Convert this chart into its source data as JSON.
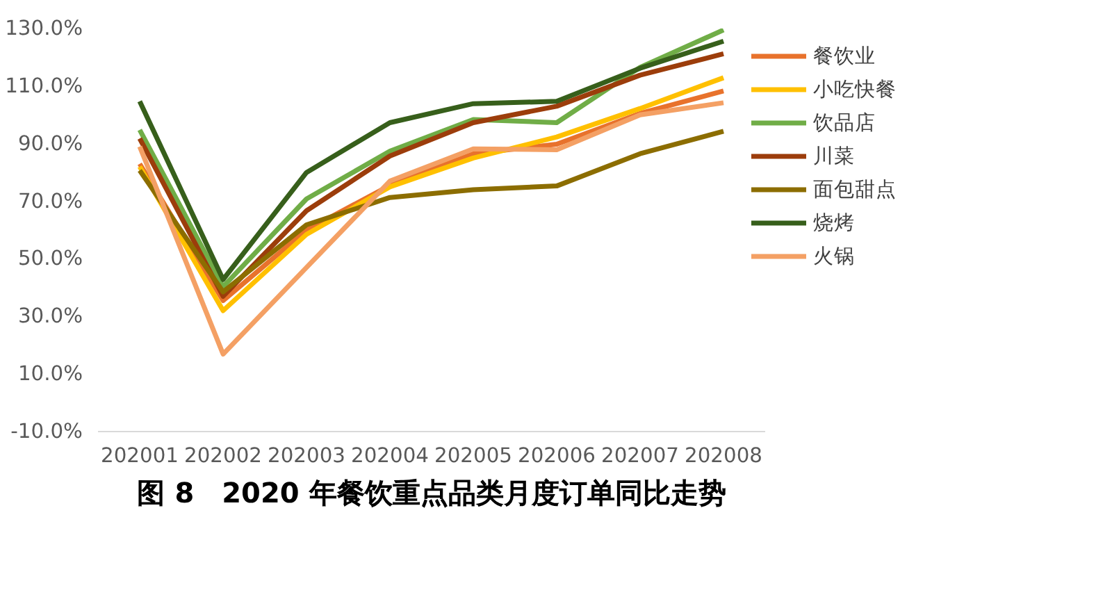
{
  "chart_data": {
    "type": "line",
    "title": "图 8　2020 年餐饮重点品类月度订单同比走势",
    "categories": [
      "202001",
      "202002",
      "202003",
      "202004",
      "202005",
      "202006",
      "202007",
      "202008"
    ],
    "ylim": [
      -10,
      130
    ],
    "yticks": [
      {
        "value": -10,
        "label": "-10.0%"
      },
      {
        "value": 10,
        "label": "10.0%"
      },
      {
        "value": 30,
        "label": "30.0%"
      },
      {
        "value": 50,
        "label": "50.0%"
      },
      {
        "value": 70,
        "label": "70.0%"
      },
      {
        "value": 90,
        "label": "90.0%"
      },
      {
        "value": 110,
        "label": "110.0%"
      },
      {
        "value": 130,
        "label": "130.0%"
      }
    ],
    "grid": false,
    "legend": "right",
    "marker": "none",
    "line_style": "solid",
    "series": [
      {
        "name": "餐饮业",
        "color": "#e8722c",
        "values": [
          83,
          35.5,
          60,
          75.5,
          86.5,
          89.8,
          100.5,
          108.3
        ]
      },
      {
        "name": "小吃快餐",
        "color": "#ffc000",
        "values": [
          82,
          32,
          58.5,
          75,
          85,
          92.3,
          102.2,
          112.9
        ]
      },
      {
        "name": "饮品店",
        "color": "#70ad47",
        "values": [
          94.8,
          40.3,
          70.8,
          87.4,
          98.4,
          97.3,
          116.5,
          129.5
        ]
      },
      {
        "name": "川菜",
        "color": "#9c3d0b",
        "values": [
          91.8,
          37,
          66.7,
          85.7,
          97.3,
          103,
          113.8,
          121.2
        ]
      },
      {
        "name": "面包甜点",
        "color": "#8c6d00",
        "values": [
          80.7,
          38.5,
          61.8,
          71.3,
          74,
          75.3,
          86.5,
          94.3
        ]
      },
      {
        "name": "烧烤",
        "color": "#375f1b",
        "values": [
          104.7,
          42.8,
          80,
          97.3,
          103.9,
          104.7,
          116.2,
          125.6
        ]
      },
      {
        "name": "火锅",
        "color": "#f4a064",
        "values": [
          89,
          16.9,
          47,
          77,
          88.2,
          87.9,
          100,
          104.2
        ]
      }
    ]
  }
}
